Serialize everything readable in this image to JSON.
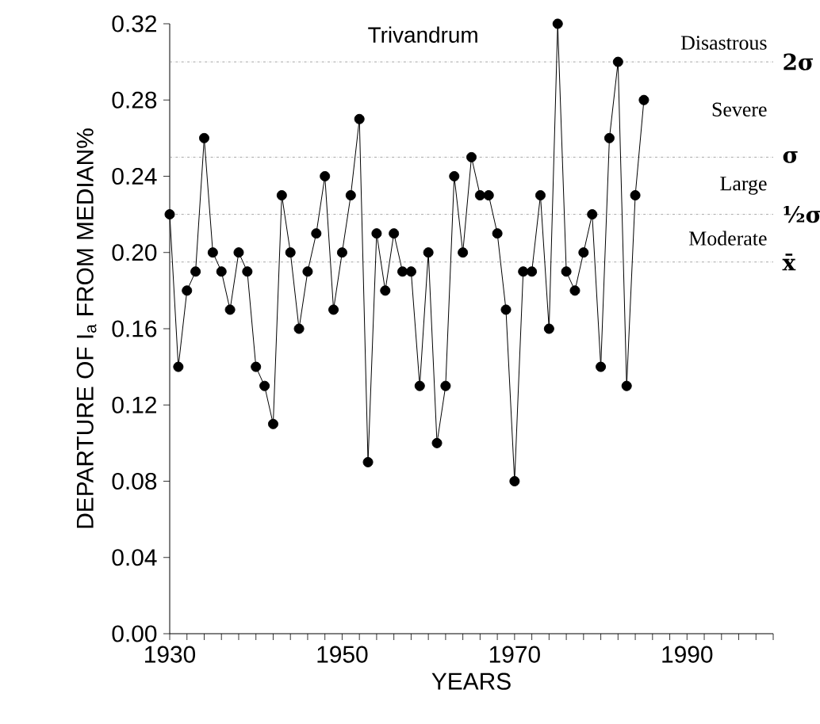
{
  "chart_data": {
    "type": "line",
    "title": "Trivandrum",
    "xlabel": "YEARS",
    "ylabel": "DEPARTURE OF I$_{a}$ FROM MEDIAN%",
    "x": [
      1930,
      1931,
      1932,
      1933,
      1934,
      1935,
      1936,
      1937,
      1938,
      1939,
      1940,
      1941,
      1942,
      1943,
      1944,
      1945,
      1946,
      1947,
      1948,
      1949,
      1950,
      1951,
      1952,
      1953,
      1954,
      1955,
      1956,
      1957,
      1958,
      1959,
      1960,
      1961,
      1962,
      1963,
      1964,
      1965,
      1966,
      1967,
      1968,
      1969,
      1970,
      1971,
      1972,
      1973,
      1974,
      1975,
      1976,
      1977,
      1978,
      1979,
      1980,
      1981,
      1982,
      1983,
      1984,
      1985
    ],
    "series": [
      {
        "color": "#000000",
        "values": [
          0.22,
          0.14,
          0.18,
          0.19,
          0.26,
          0.2,
          0.19,
          0.17,
          0.2,
          0.19,
          0.14,
          0.13,
          0.11,
          0.23,
          0.2,
          0.16,
          0.19,
          0.21,
          0.24,
          0.17,
          0.2,
          0.23,
          0.27,
          0.09,
          0.21,
          0.18,
          0.21,
          0.19,
          0.19,
          0.13,
          0.2,
          0.1,
          0.13,
          0.24,
          0.2,
          0.25,
          0.23,
          0.23,
          0.21,
          0.17,
          0.08,
          0.19,
          0.19,
          0.23,
          0.16,
          0.32,
          0.19,
          0.18,
          0.2,
          0.22,
          0.14,
          0.26,
          0.3,
          0.13,
          0.23,
          0.28
        ]
      }
    ],
    "marker": "circle",
    "line_style": "solid",
    "xlim": [
      1930,
      2000
    ],
    "xticks": [
      1930,
      {
        "value": 1932,
        "label": null
      },
      {
        "value": 1934,
        "label": null
      },
      {
        "value": 1936,
        "label": null
      },
      {
        "value": 1938,
        "label": null
      },
      {
        "value": 1940,
        "label": null
      },
      {
        "value": 1942,
        "label": null
      },
      {
        "value": 1944,
        "label": null
      },
      {
        "value": 1946,
        "label": null
      },
      {
        "value": 1948,
        "label": null
      },
      1950,
      {
        "value": 1952,
        "label": null
      },
      {
        "value": 1954,
        "label": null
      },
      {
        "value": 1956,
        "label": null
      },
      {
        "value": 1958,
        "label": null
      },
      {
        "value": 1960,
        "label": null
      },
      {
        "value": 1962,
        "label": null
      },
      {
        "value": 1964,
        "label": null
      },
      {
        "value": 1966,
        "label": null
      },
      {
        "value": 1968,
        "label": null
      },
      1970,
      {
        "value": 1972,
        "label": null
      },
      {
        "value": 1974,
        "label": null
      },
      {
        "value": 1976,
        "label": null
      },
      {
        "value": 1978,
        "label": null
      },
      {
        "value": 1980,
        "label": null
      },
      {
        "value": 1982,
        "label": null
      },
      {
        "value": 1984,
        "label": null
      },
      {
        "value": 1986,
        "label": null
      },
      {
        "value": 1988,
        "label": null
      },
      1990,
      {
        "value": 1992,
        "label": null
      },
      {
        "value": 1994,
        "label": null
      },
      {
        "value": 1996,
        "label": null
      },
      {
        "value": 1998,
        "label": null
      },
      {
        "value": 2000,
        "label": null
      }
    ],
    "ylim": [
      0,
      0.32
    ],
    "yticks": [
      {
        "value": 0,
        "label": "0.00"
      },
      {
        "value": 0.04,
        "label": "0.04"
      },
      {
        "value": 0.08,
        "label": "0.08"
      },
      {
        "value": 0.12,
        "label": "0.12"
      },
      {
        "value": 0.16,
        "label": "0.16"
      },
      {
        "value": 0.2,
        "label": "0.20"
      },
      {
        "value": 0.24,
        "label": "0.24"
      },
      {
        "value": 0.28,
        "label": "0.28"
      },
      {
        "value": 0.32,
        "label": "0.32"
      }
    ],
    "ref_lines": [
      {
        "axis": "y",
        "value": 0.3,
        "label": "2σ",
        "line_style": "dashdotted",
        "color": "#808080"
      },
      {
        "axis": "y",
        "value": 0.25,
        "label": "σ",
        "line_style": "dashdotted",
        "color": "#808080"
      },
      {
        "axis": "y",
        "value": 0.22,
        "label": "½σ",
        "line_style": "dashdotted",
        "color": "#808080"
      },
      {
        "axis": "y",
        "value": 0.195,
        "label": "x̄",
        "line_style": "dashdotted",
        "color": "#808080"
      }
    ],
    "annotations": [
      "Disastrous",
      "Severe",
      "Large",
      "Moderate"
    ]
  }
}
